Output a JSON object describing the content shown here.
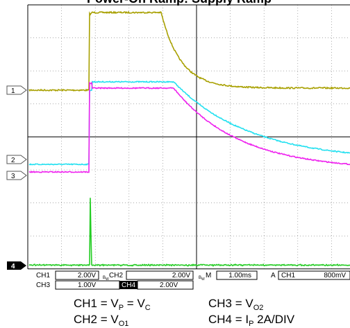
{
  "header": {
    "title": "Power-On Ramp: Supply Ramp"
  },
  "channel_markers": [
    "1",
    "2",
    "3",
    "4"
  ],
  "settings": {
    "row1": [
      "CH1",
      "2.00V",
      "B",
      "W",
      "CH2",
      "2.00V",
      "B",
      "W",
      "M",
      "1.00ms",
      "A",
      "CH1",
      "800mV"
    ],
    "row2": [
      "CH3",
      "1.00V",
      "CH4",
      "2.00V"
    ]
  },
  "captions": [
    [
      "CH1 = V",
      "P",
      " =  V",
      "C"
    ],
    [
      "CH3 = V",
      "O2"
    ],
    [
      "CH2 = V",
      "O1"
    ],
    [
      "CH4 = I",
      "P",
      " 2A/DIV"
    ]
  ]
}
